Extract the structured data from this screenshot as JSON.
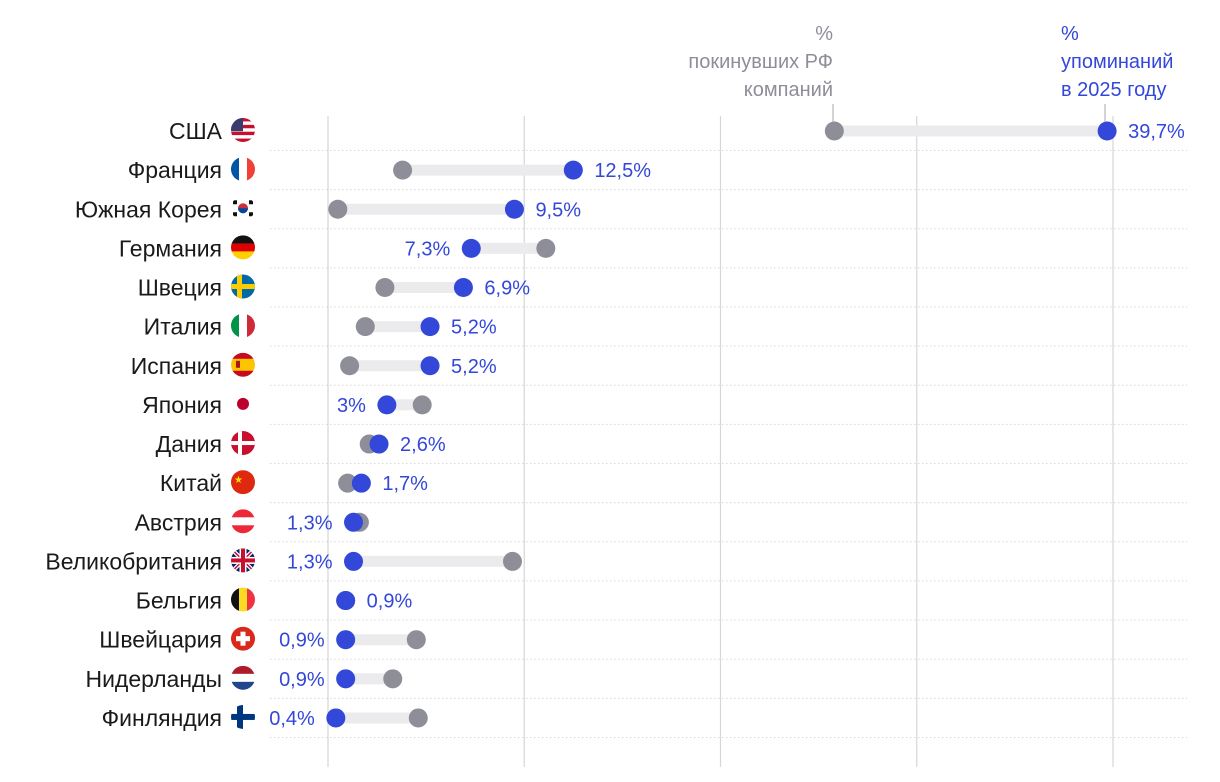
{
  "legend": {
    "left": [
      "%",
      "покинувших РФ",
      "компаний"
    ],
    "right": [
      "%",
      "упоминаний",
      "в 2025 году"
    ]
  },
  "colors": {
    "mentions": "#3347d9",
    "left_share": "#8e8e99",
    "range": "#ebebee",
    "grid": "#d6d6d6",
    "row_line": "#d8d8d8",
    "text": "#1a1a1a"
  },
  "chart_data": {
    "type": "dumbbell",
    "xlim": [
      0,
      40
    ],
    "gridlines": [
      0,
      10,
      20,
      30,
      40
    ],
    "categories": [
      "США",
      "Франция",
      "Южная Корея",
      "Германия",
      "Швеция",
      "Италия",
      "Испания",
      "Япония",
      "Дания",
      "Китай",
      "Австрия",
      "Великобритания",
      "Бельгия",
      "Швейцария",
      "Нидерланды",
      "Финляндия"
    ],
    "flags": [
      "us-flag-icon",
      "france-flag-icon",
      "south-korea-flag-icon",
      "germany-flag-icon",
      "sweden-flag-icon",
      "italy-flag-icon",
      "spain-flag-icon",
      "japan-flag-icon",
      "denmark-flag-icon",
      "china-flag-icon",
      "austria-flag-icon",
      "uk-flag-icon",
      "belgium-flag-icon",
      "switzerland-flag-icon",
      "netherlands-flag-icon",
      "finland-flag-icon"
    ],
    "series": [
      {
        "name": "% упоминаний в 2025 году",
        "values": [
          39.7,
          12.5,
          9.5,
          7.3,
          6.9,
          5.2,
          5.2,
          3,
          2.6,
          1.7,
          1.3,
          1.3,
          0.9,
          0.9,
          0.9,
          0.4
        ],
        "labels": [
          "39,7%",
          "12,5%",
          "9,5%",
          "7,3%",
          "6,9%",
          "5,2%",
          "5,2%",
          "3%",
          "2,6%",
          "1,7%",
          "1,3%",
          "1,3%",
          "0,9%",
          "0,9%",
          "0,9%",
          "0,4%"
        ]
      },
      {
        "name": "% покинувших РФ компаний",
        "values": [
          25.8,
          3.8,
          0.5,
          11.1,
          2.9,
          1.9,
          1.1,
          4.8,
          2.1,
          1.0,
          1.6,
          9.4,
          0.9,
          4.5,
          3.3,
          4.6
        ]
      }
    ]
  }
}
